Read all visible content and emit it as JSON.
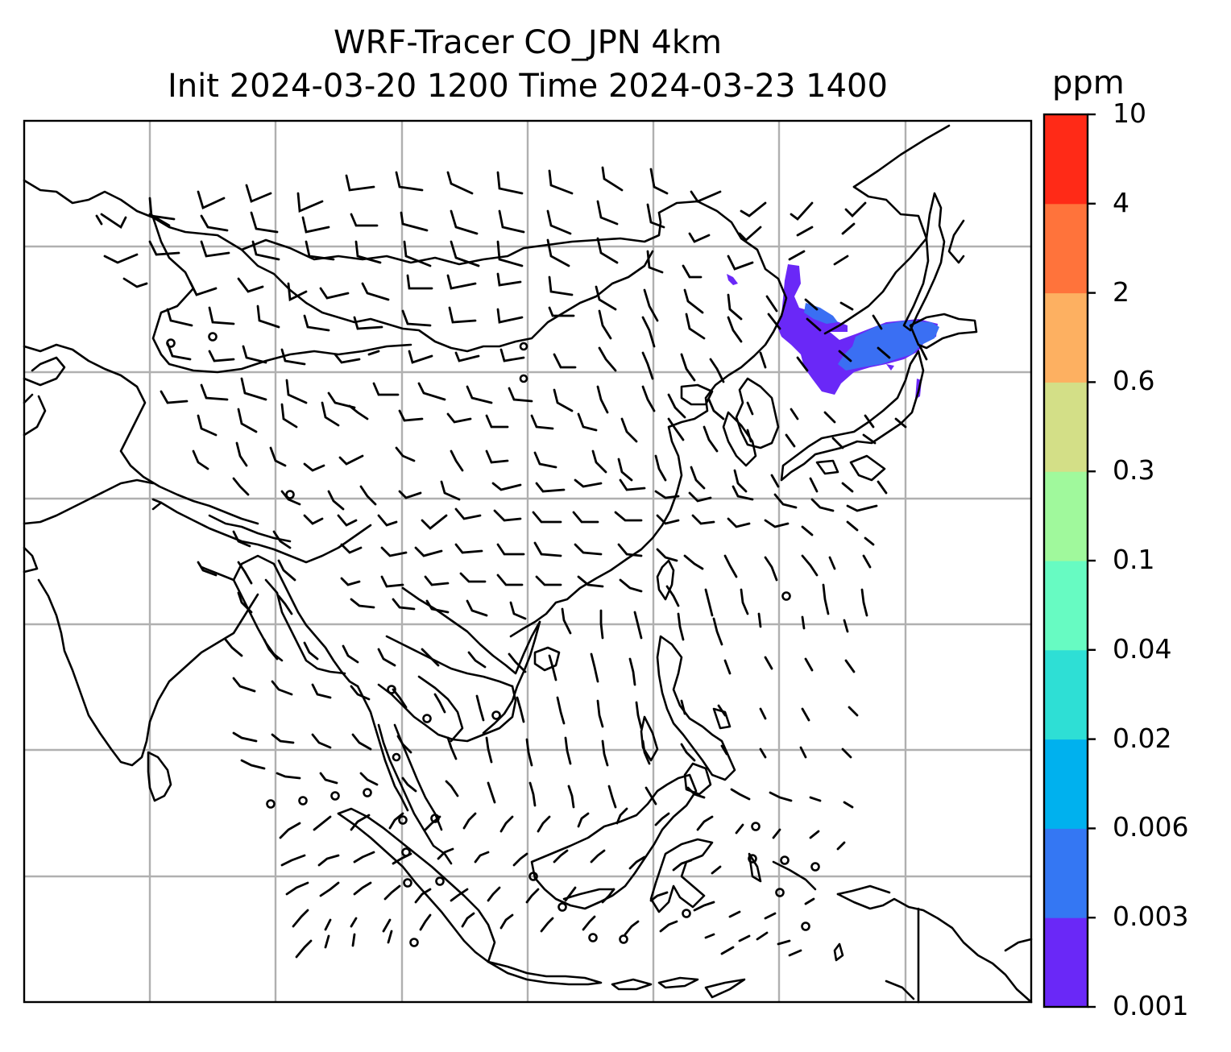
{
  "title": {
    "line1": "WRF-Tracer CO_JPN 4km",
    "line2": "Init 2024-03-20 1200 Time 2024-03-23 1400"
  },
  "colorbar": {
    "label": "ppm",
    "ticks": [
      "0.001",
      "0.003",
      "0.006",
      "0.02",
      "0.04",
      "0.1",
      "0.3",
      "0.6",
      "2",
      "4",
      "10"
    ],
    "colors": [
      "#6a28f7",
      "#3477f3",
      "#00b1ee",
      "#2edfd5",
      "#67fbc2",
      "#a0f99c",
      "#d3df87",
      "#fdb061",
      "#ff733b",
      "#ff2a17"
    ]
  },
  "map": {
    "plume_fill": "#6a28f7",
    "plume_core": "#3a6ff3",
    "gridline_color": "#b0b0b0",
    "coastline_color": "#000000"
  }
}
